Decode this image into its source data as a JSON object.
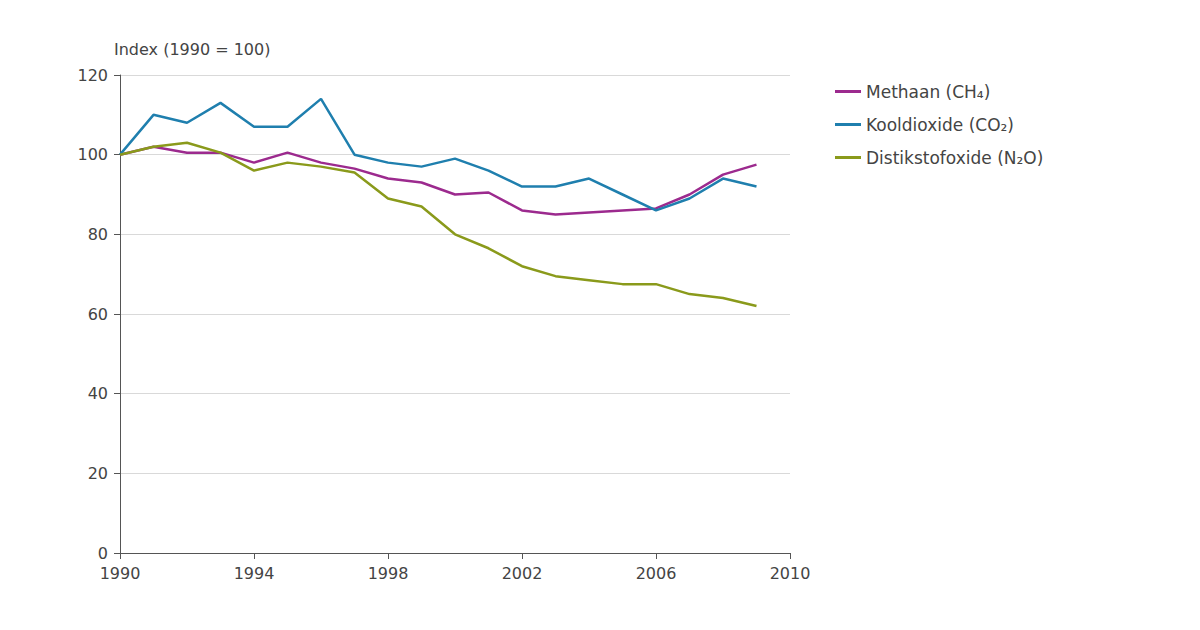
{
  "chart_data": {
    "type": "line",
    "y_label": "Index (1990 = 100)",
    "x": [
      1990,
      1991,
      1992,
      1993,
      1994,
      1995,
      1996,
      1997,
      1998,
      1999,
      2000,
      2001,
      2002,
      2003,
      2004,
      2005,
      2006,
      2007,
      2008,
      2009
    ],
    "series": [
      {
        "name": "Methaan (CH₄)",
        "color": "#9c2a8e",
        "values": [
          100,
          102,
          100.5,
          100.5,
          98,
          100.5,
          98,
          96.5,
          94,
          93,
          90,
          90.5,
          86,
          85,
          85.5,
          86,
          86.5,
          90,
          95,
          97.5
        ]
      },
      {
        "name": "Kooldioxide (CO₂)",
        "color": "#1f7fae",
        "values": [
          100,
          110,
          108,
          113,
          107,
          107,
          114,
          100,
          98,
          97,
          99,
          96,
          92,
          92,
          94,
          90,
          86,
          89,
          94,
          92
        ]
      },
      {
        "name": "Distikstofoxide (N₂O)",
        "color": "#8a9a1b",
        "values": [
          100,
          102,
          103,
          100.5,
          96,
          98,
          97,
          95.5,
          89,
          87,
          80,
          76.5,
          72,
          69.5,
          68.5,
          67.5,
          67.5,
          65,
          64,
          62
        ]
      }
    ],
    "xlim": [
      1990,
      2010
    ],
    "xticks": [
      1990,
      1994,
      1998,
      2002,
      2006,
      2010
    ],
    "ylim": [
      0,
      120
    ],
    "yticks": [
      0,
      20,
      40,
      60,
      80,
      100,
      120
    ],
    "grid": true,
    "legend": "right"
  }
}
